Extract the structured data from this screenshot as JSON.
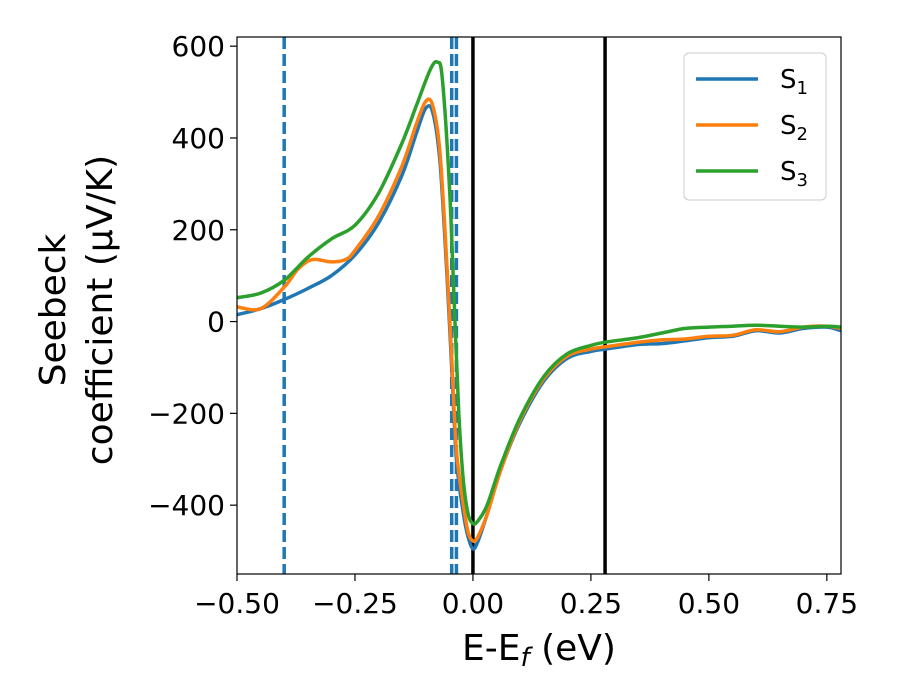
{
  "chart_data": {
    "type": "line",
    "xlabel": "E-E",
    "xlabel_sub": "f",
    "xlabel_unit": " (eV)",
    "ylabel_line1": "Seebeck",
    "ylabel_line2": "coefficient  (μV/K)",
    "xlim": [
      -0.5,
      0.78
    ],
    "ylim": [
      -550,
      620
    ],
    "x_ticks": [
      -0.5,
      -0.25,
      0.0,
      0.25,
      0.5,
      0.75
    ],
    "x_tick_labels": [
      "−0.50",
      "−0.25",
      "0.00",
      "0.25",
      "0.50",
      "0.75"
    ],
    "y_ticks": [
      -400,
      -200,
      0,
      200,
      400,
      600
    ],
    "y_tick_labels": [
      "−400",
      "−200",
      "0",
      "200",
      "400",
      "600"
    ],
    "grid": false,
    "legend_position": "top-right",
    "series": [
      {
        "name": "S",
        "sub": "1",
        "color": "#1f77b4",
        "points": [
          [
            -0.5,
            15
          ],
          [
            -0.45,
            28
          ],
          [
            -0.4,
            48
          ],
          [
            -0.35,
            72
          ],
          [
            -0.3,
            100
          ],
          [
            -0.25,
            145
          ],
          [
            -0.2,
            215
          ],
          [
            -0.15,
            320
          ],
          [
            -0.12,
            410
          ],
          [
            -0.1,
            465
          ],
          [
            -0.085,
            455
          ],
          [
            -0.07,
            350
          ],
          [
            -0.055,
            100
          ],
          [
            -0.045,
            -100
          ],
          [
            -0.035,
            -300
          ],
          [
            -0.02,
            -420
          ],
          [
            -0.01,
            -470
          ],
          [
            0.0,
            -495
          ],
          [
            0.01,
            -480
          ],
          [
            0.03,
            -420
          ],
          [
            0.06,
            -320
          ],
          [
            0.1,
            -220
          ],
          [
            0.15,
            -130
          ],
          [
            0.2,
            -80
          ],
          [
            0.25,
            -65
          ],
          [
            0.28,
            -60
          ],
          [
            0.35,
            -50
          ],
          [
            0.4,
            -48
          ],
          [
            0.45,
            -42
          ],
          [
            0.5,
            -35
          ],
          [
            0.55,
            -32
          ],
          [
            0.6,
            -20
          ],
          [
            0.65,
            -25
          ],
          [
            0.7,
            -15
          ],
          [
            0.75,
            -12
          ],
          [
            0.78,
            -20
          ]
        ]
      },
      {
        "name": "S",
        "sub": "2",
        "color": "#ff7f0e",
        "points": [
          [
            -0.5,
            32
          ],
          [
            -0.45,
            28
          ],
          [
            -0.4,
            75
          ],
          [
            -0.37,
            115
          ],
          [
            -0.34,
            135
          ],
          [
            -0.3,
            130
          ],
          [
            -0.27,
            135
          ],
          [
            -0.25,
            155
          ],
          [
            -0.2,
            230
          ],
          [
            -0.15,
            340
          ],
          [
            -0.12,
            430
          ],
          [
            -0.1,
            480
          ],
          [
            -0.085,
            470
          ],
          [
            -0.07,
            370
          ],
          [
            -0.055,
            120
          ],
          [
            -0.045,
            -80
          ],
          [
            -0.035,
            -280
          ],
          [
            -0.02,
            -400
          ],
          [
            -0.01,
            -460
          ],
          [
            0.0,
            -478
          ],
          [
            0.01,
            -470
          ],
          [
            0.03,
            -420
          ],
          [
            0.06,
            -320
          ],
          [
            0.1,
            -215
          ],
          [
            0.15,
            -125
          ],
          [
            0.2,
            -75
          ],
          [
            0.25,
            -60
          ],
          [
            0.28,
            -55
          ],
          [
            0.35,
            -45
          ],
          [
            0.4,
            -40
          ],
          [
            0.45,
            -38
          ],
          [
            0.5,
            -32
          ],
          [
            0.55,
            -30
          ],
          [
            0.6,
            -18
          ],
          [
            0.65,
            -22
          ],
          [
            0.7,
            -12
          ],
          [
            0.75,
            -10
          ],
          [
            0.78,
            -15
          ]
        ]
      },
      {
        "name": "S",
        "sub": "3",
        "color": "#2ca02c",
        "points": [
          [
            -0.5,
            52
          ],
          [
            -0.45,
            62
          ],
          [
            -0.4,
            90
          ],
          [
            -0.35,
            140
          ],
          [
            -0.3,
            180
          ],
          [
            -0.25,
            210
          ],
          [
            -0.2,
            280
          ],
          [
            -0.15,
            390
          ],
          [
            -0.12,
            470
          ],
          [
            -0.09,
            550
          ],
          [
            -0.075,
            565
          ],
          [
            -0.065,
            530
          ],
          [
            -0.05,
            300
          ],
          [
            -0.04,
            50
          ],
          [
            -0.03,
            -200
          ],
          [
            -0.02,
            -350
          ],
          [
            -0.01,
            -420
          ],
          [
            0.0,
            -440
          ],
          [
            0.01,
            -435
          ],
          [
            0.03,
            -400
          ],
          [
            0.06,
            -310
          ],
          [
            0.1,
            -210
          ],
          [
            0.15,
            -120
          ],
          [
            0.2,
            -70
          ],
          [
            0.25,
            -52
          ],
          [
            0.28,
            -45
          ],
          [
            0.35,
            -35
          ],
          [
            0.4,
            -25
          ],
          [
            0.45,
            -15
          ],
          [
            0.5,
            -12
          ],
          [
            0.55,
            -10
          ],
          [
            0.6,
            -8
          ],
          [
            0.65,
            -10
          ],
          [
            0.7,
            -12
          ],
          [
            0.75,
            -10
          ],
          [
            0.78,
            -12
          ]
        ]
      }
    ],
    "vlines": [
      {
        "x": -0.4,
        "style": "dashed",
        "color": "#1f77b4"
      },
      {
        "x": -0.045,
        "style": "dashed",
        "color": "#1f77b4"
      },
      {
        "x": -0.035,
        "style": "dashed",
        "color": "#1f77b4"
      },
      {
        "x": 0.0,
        "style": "solid",
        "color": "#000000"
      },
      {
        "x": 0.28,
        "style": "solid",
        "color": "#000000"
      }
    ]
  }
}
